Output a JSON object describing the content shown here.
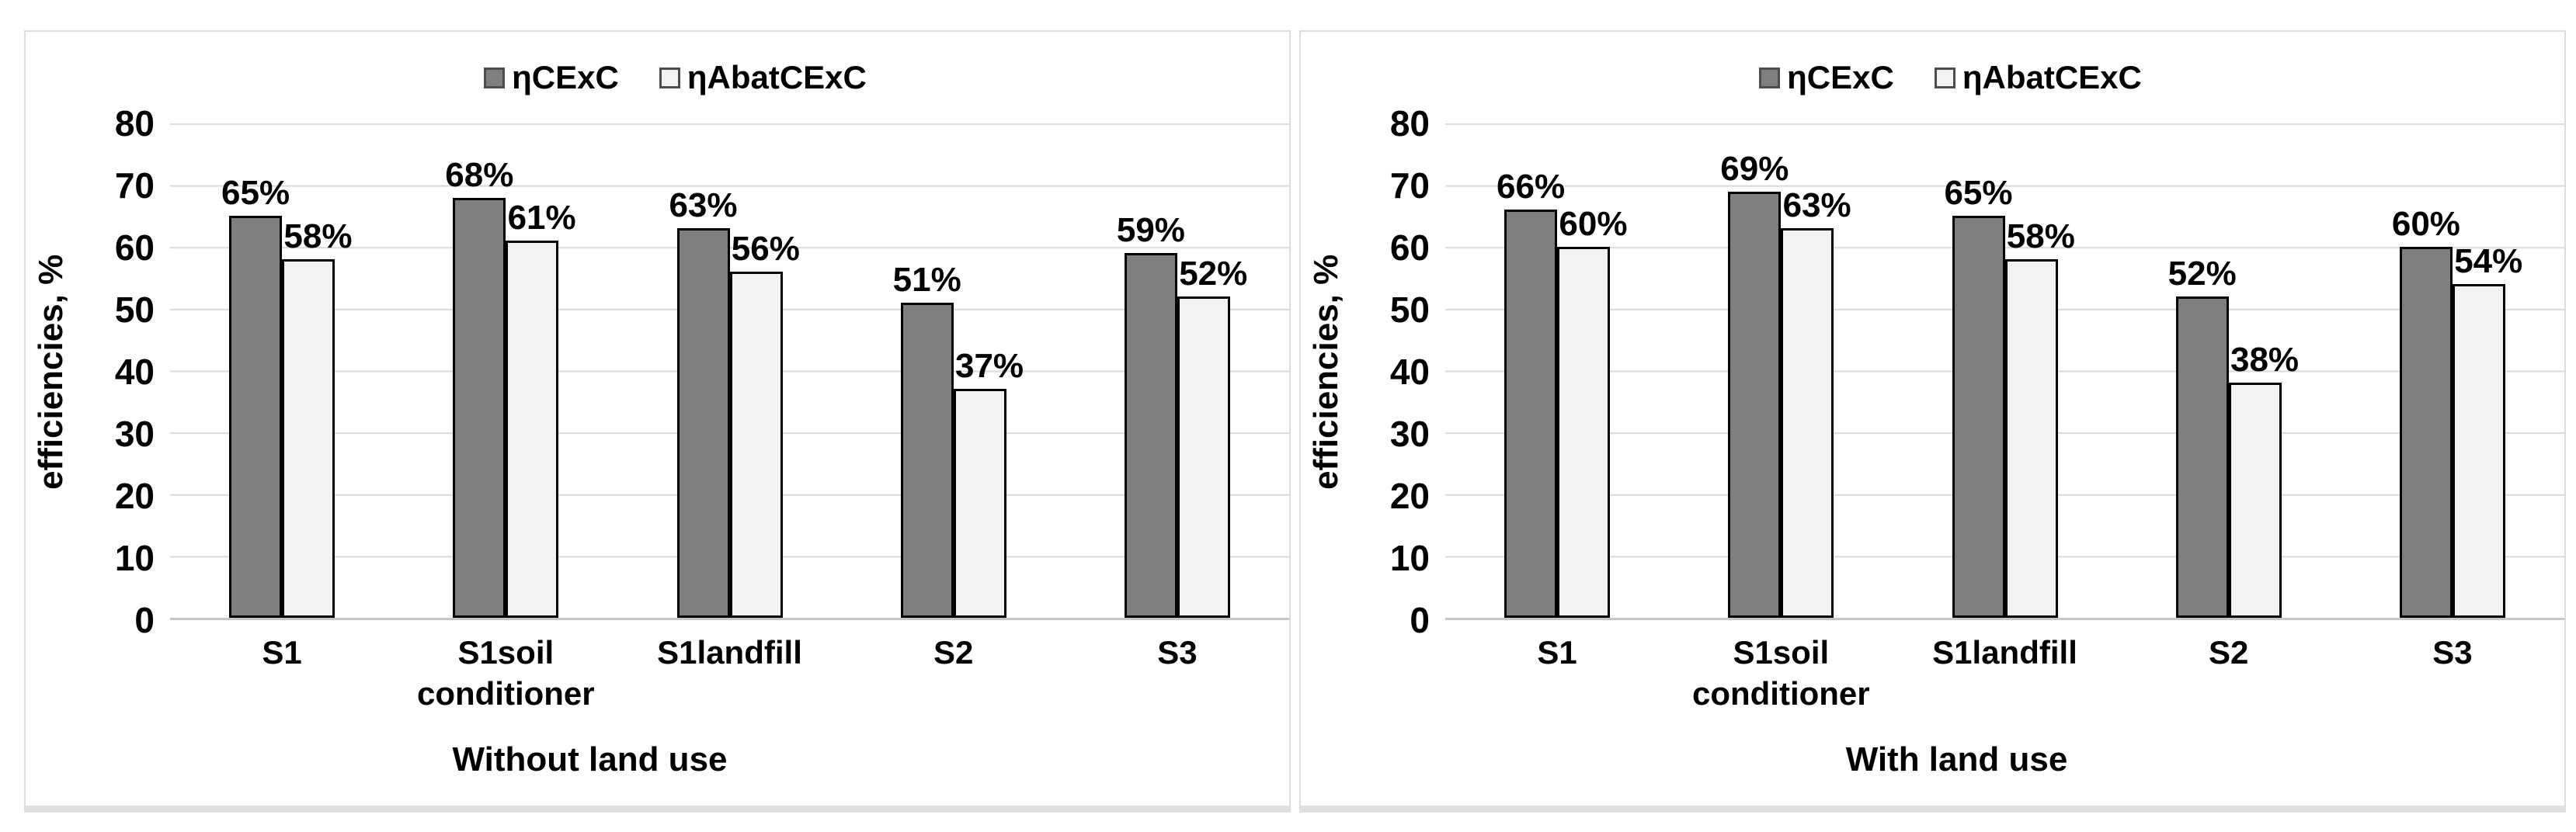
{
  "colors": {
    "series1": "#7f7f7f",
    "series2": "#f2f2f2",
    "bar_border": "#000000",
    "gridline": "#d9d9d9",
    "axis_line": "#c6c6c6",
    "panel_border": "#dcdcdc",
    "text": "#000000"
  },
  "chart_data": [
    {
      "type": "bar",
      "title": "",
      "xlabel": "Without land use",
      "ylabel": "efficiencies, %",
      "ylim": [
        0,
        80
      ],
      "yticks": [
        0,
        10,
        20,
        30,
        40,
        50,
        60,
        70,
        80
      ],
      "grid": true,
      "legend_position": "top",
      "categories": [
        "S1",
        "S1soil conditioner",
        "S1landfill",
        "S2",
        "S3"
      ],
      "series": [
        {
          "name": "ηCExC",
          "values": [
            65,
            68,
            63,
            51,
            59
          ],
          "labels": [
            "65%",
            "68%",
            "63%",
            "51%",
            "59%"
          ]
        },
        {
          "name": "ηAbatCExC",
          "values": [
            58,
            61,
            56,
            37,
            52
          ],
          "labels": [
            "58%",
            "61%",
            "56%",
            "37%",
            "52%"
          ]
        }
      ]
    },
    {
      "type": "bar",
      "title": "",
      "xlabel": "With land use",
      "ylabel": "efficiencies, %",
      "ylim": [
        0,
        80
      ],
      "yticks": [
        0,
        10,
        20,
        30,
        40,
        50,
        60,
        70,
        80
      ],
      "grid": true,
      "legend_position": "top",
      "categories": [
        "S1",
        "S1soil conditioner",
        "S1landfill",
        "S2",
        "S3"
      ],
      "series": [
        {
          "name": "ηCExC",
          "values": [
            66,
            69,
            65,
            52,
            60
          ],
          "labels": [
            "66%",
            "69%",
            "65%",
            "52%",
            "60%"
          ]
        },
        {
          "name": "ηAbatCExC",
          "values": [
            60,
            63,
            58,
            38,
            54
          ],
          "labels": [
            "60%",
            "63%",
            "58%",
            "38%",
            "54%"
          ]
        }
      ]
    }
  ]
}
